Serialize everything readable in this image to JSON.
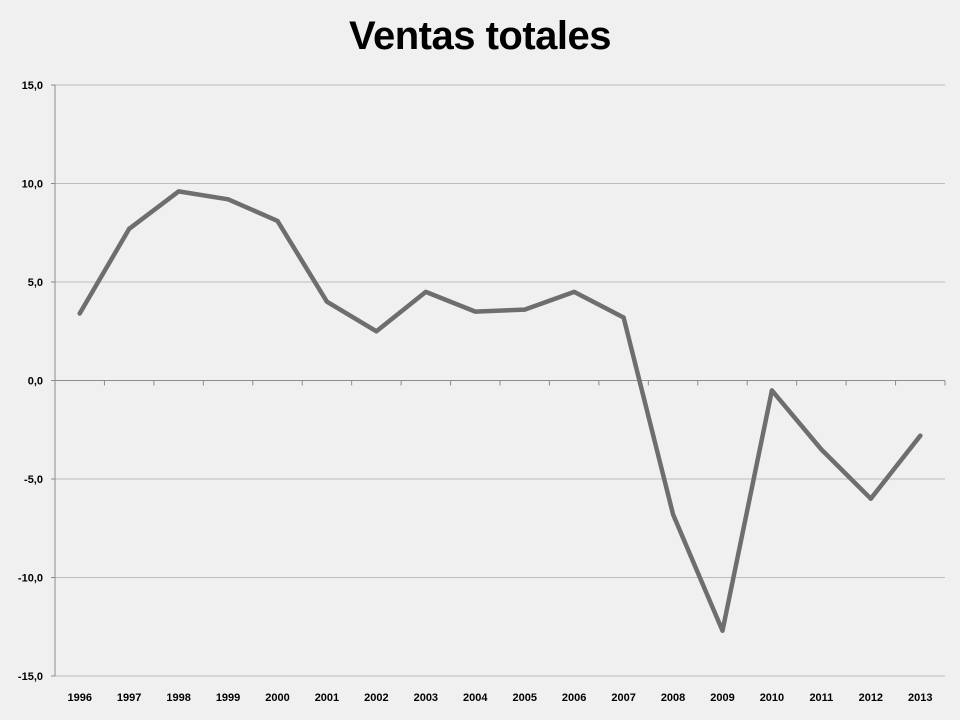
{
  "colors": {
    "background": "#f0f0f0",
    "line": "#6e6e6e",
    "grid": "#bdbdbd",
    "axis": "#8c8c8c",
    "text": "#000000"
  },
  "chart_data": {
    "type": "line",
    "title": "Ventas totales",
    "xlabel": "",
    "ylabel": "",
    "categories": [
      "1996",
      "1997",
      "1998",
      "1999",
      "2000",
      "2001",
      "2002",
      "2003",
      "2004",
      "2005",
      "2006",
      "2007",
      "2008",
      "2009",
      "2010",
      "2011",
      "2012",
      "2013"
    ],
    "series": [
      {
        "values": [
          3.4,
          7.7,
          9.6,
          9.2,
          8.1,
          4.0,
          2.5,
          4.5,
          3.5,
          3.6,
          4.5,
          3.2,
          -6.8,
          -12.7,
          -0.5,
          -3.5,
          -6.0,
          -2.8
        ]
      }
    ],
    "ylim": [
      -15,
      15
    ],
    "yticks": [
      15,
      10,
      5,
      0,
      -5,
      -10,
      -15
    ],
    "ytick_labels": [
      "15,0",
      "10,0",
      "5,0",
      "0,0",
      "-5,0",
      "-10,0",
      "-15,0"
    ],
    "grid": true,
    "legend": "none"
  }
}
